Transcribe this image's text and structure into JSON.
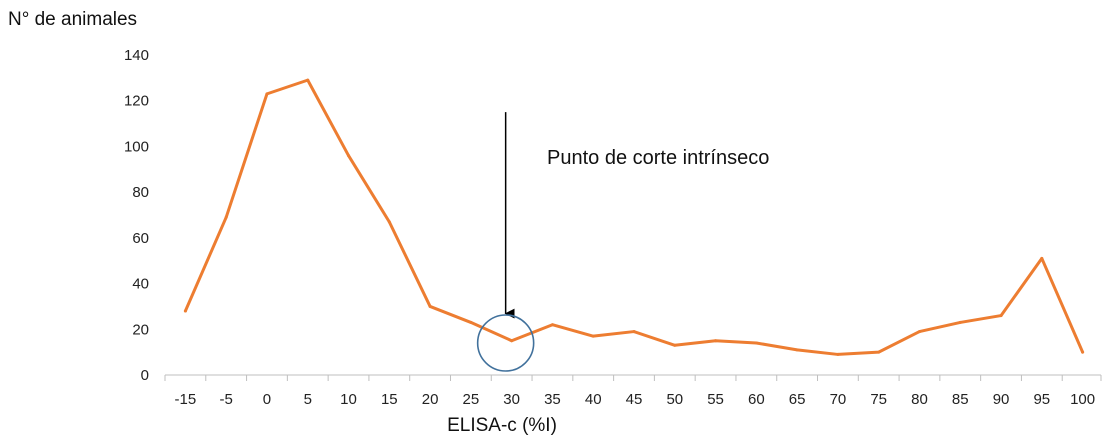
{
  "chart_data": {
    "type": "line",
    "title": "",
    "ylabel": "N° de animales",
    "xlabel": "ELISA-c (%I)",
    "ylim": [
      0,
      140
    ],
    "yticks": [
      0,
      20,
      40,
      60,
      80,
      100,
      120,
      140
    ],
    "categories": [
      "-15",
      "-5",
      "0",
      "5",
      "10",
      "15",
      "20",
      "25",
      "30",
      "35",
      "40",
      "45",
      "50",
      "55",
      "60",
      "65",
      "70",
      "75",
      "80",
      "85",
      "90",
      "95",
      "100"
    ],
    "series": [
      {
        "name": "",
        "color": "#ED7D31",
        "values": [
          28,
          69,
          123,
          129,
          96,
          67,
          30,
          23,
          15,
          22,
          17,
          19,
          13,
          15,
          14,
          11,
          9,
          10,
          19,
          23,
          26,
          51,
          10
        ]
      }
    ],
    "grid": false,
    "annotations": [
      {
        "text": "Punto de corte intrínseco",
        "arrow_category": "30",
        "arrow_from_value": 115,
        "arrow_to_value": 26,
        "circle_category": "30",
        "circle_value": 14,
        "circle_color": "#41719C"
      }
    ]
  }
}
